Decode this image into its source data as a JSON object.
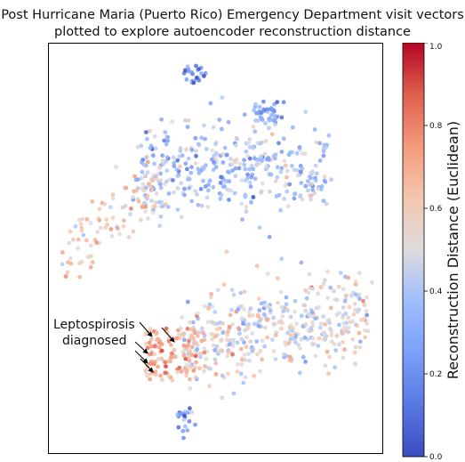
{
  "chart_data": {
    "type": "scatter",
    "title_line1": "Post Hurricane Maria (Puerto Rico) Emergency Department visit vectors",
    "title_line2": "plotted to explore autoencoder reconstruction distance",
    "xlabel": "",
    "ylabel": "",
    "axis_ticks": "hidden",
    "annotation": {
      "text_line1": "Leptospirosis",
      "text_line2": "diagnosed"
    },
    "colorbar": {
      "label": "Reconstruction Distance (Euclidean)",
      "range": [
        0.0,
        1.0
      ],
      "ticks": [
        "0.0",
        "0.2",
        "0.4",
        "0.6",
        "0.8",
        "1.0"
      ],
      "colormap": "coolwarm"
    },
    "clusters": [
      {
        "id": "top-small",
        "n": 22,
        "value_mean": 0.2,
        "value_spread": 0.15
      },
      {
        "id": "upper-right-blob",
        "n": 40,
        "value_mean": 0.25,
        "value_spread": 0.1
      },
      {
        "id": "upper-main-band",
        "n": 380,
        "value_mean": 0.38,
        "value_spread": 0.12
      },
      {
        "id": "upper-left-warm",
        "n": 90,
        "value_mean": 0.58,
        "value_spread": 0.1
      },
      {
        "id": "lower-main-band",
        "n": 420,
        "value_mean": 0.5,
        "value_spread": 0.12
      },
      {
        "id": "lower-left-warm",
        "n": 110,
        "value_mean": 0.7,
        "value_spread": 0.1
      },
      {
        "id": "bottom-tail",
        "n": 20,
        "value_mean": 0.25,
        "value_spread": 0.1
      }
    ]
  }
}
